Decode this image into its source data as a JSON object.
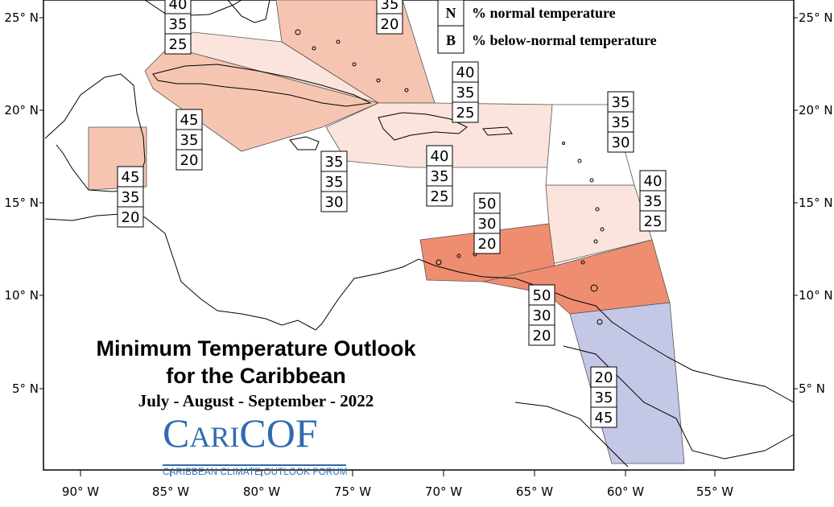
{
  "map": {
    "title_line1": "Minimum Temperature Outlook",
    "title_line2": "for the Caribbean",
    "season": "July - August - September - 2022",
    "logo": {
      "name": "CariCOF",
      "tagline": "CARIBBEAN CLIMATE OUTLOOK FORUM",
      "color": "#2f6bb0"
    },
    "legend": [
      {
        "key": "N",
        "text": "% normal temperature"
      },
      {
        "key": "B",
        "text": "% below-normal temperature"
      }
    ],
    "lon_ticks": [
      "90° W",
      "85° W",
      "80° W",
      "75° W",
      "70° W",
      "65° W",
      "60° W",
      "55° W"
    ],
    "lat_ticks": [
      "25° N",
      "20° N",
      "15° N",
      "10° N",
      "5° N"
    ],
    "category_colors": {
      "above_40": "#fbe4dc",
      "above_45": "#f6c5b2",
      "above_50": "#ef8d71",
      "below_45": "#c4c8e6"
    },
    "probability_boxes": [
      {
        "values": [
          "40",
          "35",
          "25"
        ]
      },
      {
        "values": [
          "35",
          "20"
        ]
      },
      {
        "values": [
          "40",
          "35",
          "25"
        ]
      },
      {
        "values": [
          "45",
          "35",
          "20"
        ]
      },
      {
        "values": [
          "35",
          "35",
          "30"
        ]
      },
      {
        "values": [
          "45",
          "35",
          "20"
        ]
      },
      {
        "values": [
          "35",
          "35",
          "30"
        ]
      },
      {
        "values": [
          "40",
          "35",
          "25"
        ]
      },
      {
        "values": [
          "40",
          "35",
          "25"
        ]
      },
      {
        "values": [
          "50",
          "30",
          "20"
        ]
      },
      {
        "values": [
          "50",
          "30",
          "20"
        ]
      },
      {
        "values": [
          "20",
          "35",
          "45"
        ]
      }
    ]
  }
}
